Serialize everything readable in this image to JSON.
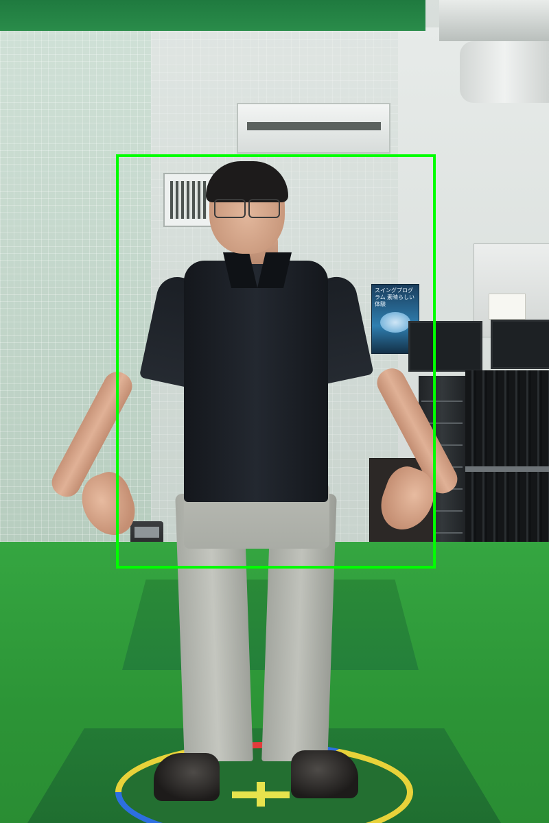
{
  "scene": {
    "description_visible_text": {
      "poster_title": "スイングプログラム 素晴らしい体験"
    }
  },
  "overlay": {
    "detection_box_color": "#00ff00"
  },
  "colors": {
    "turf": "#2f9a3a",
    "shirt": "#1b1f25",
    "trousers": "#b2b5ae",
    "tee_marker": "#e7e34d"
  },
  "icons": {
    "hoop": "multicolor-ring",
    "tee_marker": "yellow-cross"
  }
}
